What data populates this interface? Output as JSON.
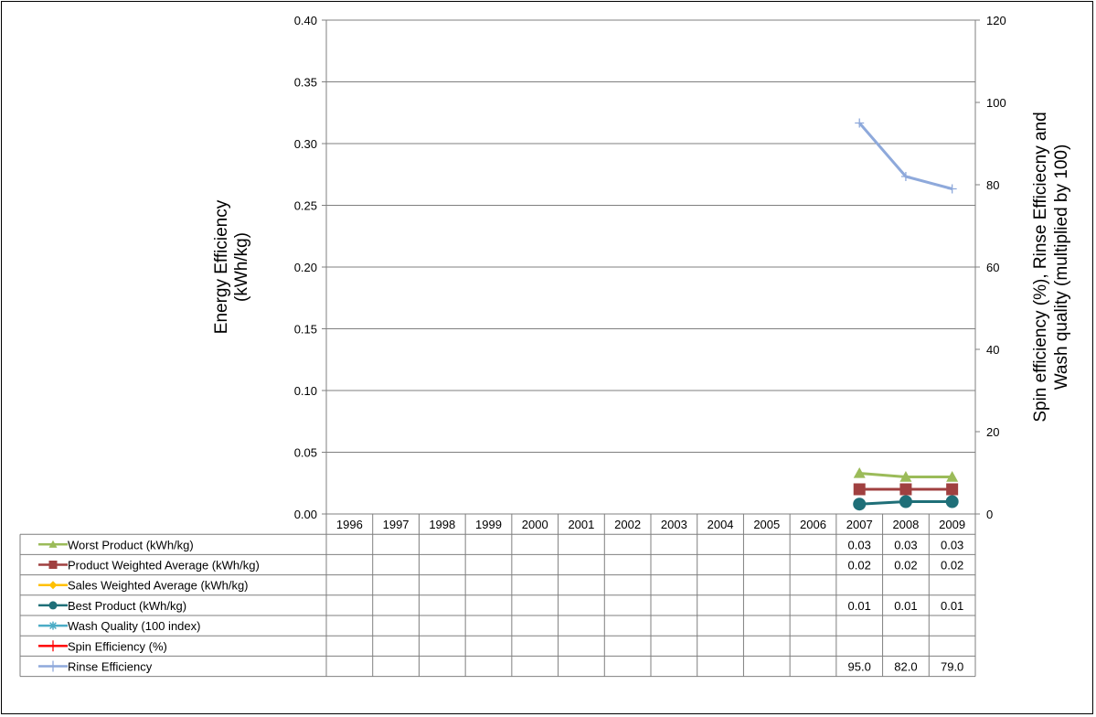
{
  "chart_data": {
    "type": "line",
    "categories": [
      "1996",
      "1997",
      "1998",
      "1999",
      "2000",
      "2001",
      "2002",
      "2003",
      "2004",
      "2005",
      "2006",
      "2007",
      "2008",
      "2009"
    ],
    "y_left": {
      "label_lines": [
        "Energy Efficiency",
        "(kWh/kg)"
      ],
      "min": 0,
      "max": 0.4,
      "ticks": [
        "0.00",
        "0.05",
        "0.10",
        "0.15",
        "0.20",
        "0.25",
        "0.30",
        "0.35",
        "0.40"
      ]
    },
    "y_right": {
      "label_lines": [
        "Spin efficiency (%), Rinse Efficiecny and",
        "Wash quality (multiplied by 100)"
      ],
      "min": 0,
      "max": 120,
      "ticks": [
        "0",
        "20",
        "40",
        "60",
        "80",
        "100",
        "120"
      ]
    },
    "grid": true,
    "legend": "data-table",
    "series": [
      {
        "name": "Worst Product (kWh/kg)",
        "axis": "left",
        "color": "#9BBB59",
        "marker": "triangle",
        "values": [
          null,
          null,
          null,
          null,
          null,
          null,
          null,
          null,
          null,
          null,
          null,
          0.033,
          0.03,
          0.03
        ],
        "labels": [
          "",
          "",
          "",
          "",
          "",
          "",
          "",
          "",
          "",
          "",
          "",
          "0.03",
          "0.03",
          "0.03"
        ]
      },
      {
        "name": "Product Weighted Average (kWh/kg)",
        "axis": "left",
        "color": "#A04040",
        "marker": "square",
        "values": [
          null,
          null,
          null,
          null,
          null,
          null,
          null,
          null,
          null,
          null,
          null,
          0.02,
          0.02,
          0.02
        ],
        "labels": [
          "",
          "",
          "",
          "",
          "",
          "",
          "",
          "",
          "",
          "",
          "",
          "0.02",
          "0.02",
          "0.02"
        ]
      },
      {
        "name": "Sales Weighted Average (kWh/kg)",
        "axis": "left",
        "color": "#FFC000",
        "marker": "diamond",
        "values": [
          null,
          null,
          null,
          null,
          null,
          null,
          null,
          null,
          null,
          null,
          null,
          null,
          null,
          null
        ],
        "labels": [
          "",
          "",
          "",
          "",
          "",
          "",
          "",
          "",
          "",
          "",
          "",
          "",
          "",
          ""
        ]
      },
      {
        "name": "Best Product (kWh/kg)",
        "axis": "left",
        "color": "#1F6F78",
        "marker": "circle",
        "values": [
          null,
          null,
          null,
          null,
          null,
          null,
          null,
          null,
          null,
          null,
          null,
          0.008,
          0.01,
          0.01
        ],
        "labels": [
          "",
          "",
          "",
          "",
          "",
          "",
          "",
          "",
          "",
          "",
          "",
          "0.01",
          "0.01",
          "0.01"
        ]
      },
      {
        "name": "Wash Quality (100 index)",
        "axis": "right",
        "color": "#4BACC6",
        "marker": "star",
        "values": [
          null,
          null,
          null,
          null,
          null,
          null,
          null,
          null,
          null,
          null,
          null,
          null,
          null,
          null
        ],
        "labels": [
          "",
          "",
          "",
          "",
          "",
          "",
          "",
          "",
          "",
          "",
          "",
          "",
          "",
          ""
        ]
      },
      {
        "name": "Spin Efficiency (%)",
        "axis": "right",
        "color": "#FF0000",
        "marker": "plus",
        "values": [
          null,
          null,
          null,
          null,
          null,
          null,
          null,
          null,
          null,
          null,
          null,
          null,
          null,
          null
        ],
        "labels": [
          "",
          "",
          "",
          "",
          "",
          "",
          "",
          "",
          "",
          "",
          "",
          "",
          "",
          ""
        ]
      },
      {
        "name": "Rinse Efficiency",
        "axis": "right",
        "color": "#8EA9DB",
        "marker": "plus",
        "values": [
          null,
          null,
          null,
          null,
          null,
          null,
          null,
          null,
          null,
          null,
          null,
          95.0,
          82.0,
          79.0
        ],
        "labels": [
          "",
          "",
          "",
          "",
          "",
          "",
          "",
          "",
          "",
          "",
          "",
          "95.0",
          "82.0",
          "79.0"
        ]
      }
    ]
  }
}
